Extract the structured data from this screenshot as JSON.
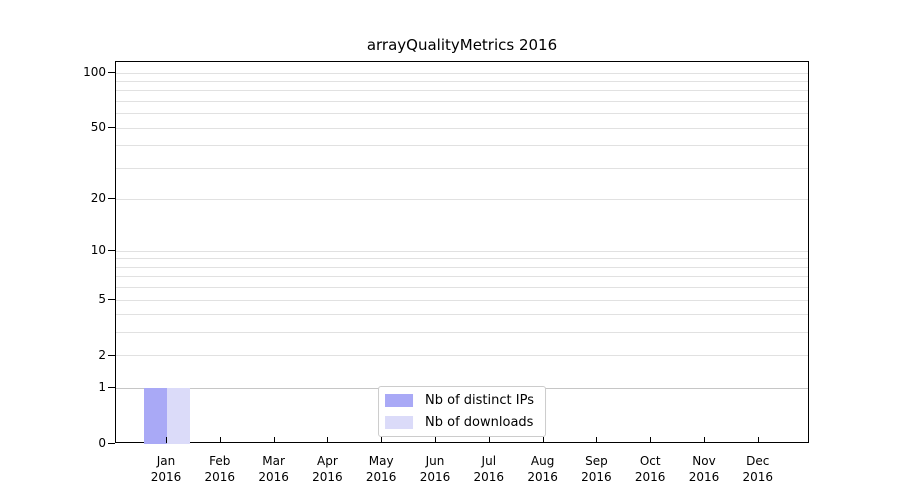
{
  "chart_data": {
    "type": "bar",
    "title": "arrayQualityMetrics 2016",
    "categories": [
      "Jan",
      "Feb",
      "Mar",
      "Apr",
      "May",
      "Jun",
      "Jul",
      "Aug",
      "Sep",
      "Oct",
      "Nov",
      "Dec"
    ],
    "category_year": "2016",
    "series": [
      {
        "name": "Nb of distinct IPs",
        "color": "#a9a9f6",
        "values": [
          1,
          0,
          0,
          0,
          0,
          0,
          0,
          0,
          0,
          0,
          0,
          0
        ]
      },
      {
        "name": "Nb of downloads",
        "color": "#dbdbf9",
        "values": [
          1,
          0,
          0,
          0,
          0,
          0,
          0,
          0,
          0,
          0,
          0,
          0
        ]
      }
    ],
    "yscale": "log1p",
    "ylim": [
      0,
      115
    ],
    "yticks": [
      0,
      1,
      2,
      5,
      10,
      20,
      50,
      100
    ],
    "gridlines": [
      1,
      2,
      3,
      4,
      5,
      6,
      7,
      8,
      9,
      10,
      20,
      30,
      40,
      50,
      60,
      70,
      80,
      90,
      100
    ],
    "grid_color": "#e1e1e1",
    "grid_emphasis_color": "#c6c6c6",
    "grid_emphasis_values": [
      1
    ],
    "legend_position": "lower center",
    "xlabel": "",
    "ylabel": ""
  }
}
